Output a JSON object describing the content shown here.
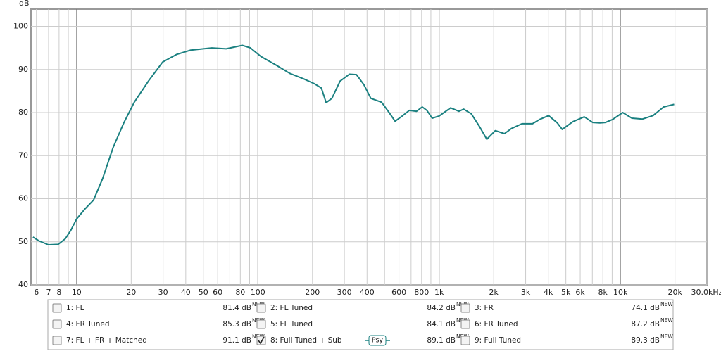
{
  "chart_data": {
    "type": "line",
    "log_x": true,
    "y_label": "dB",
    "xlim": [
      5.6,
      30000
    ],
    "ylim": [
      40,
      104
    ],
    "xticks": [
      6,
      7,
      8,
      10,
      20,
      30,
      40,
      50,
      60,
      80,
      100,
      200,
      300,
      400,
      600,
      800,
      {
        "value": 1000,
        "label": "1k"
      },
      {
        "value": 2000,
        "label": "2k"
      },
      {
        "value": 3000,
        "label": "3k"
      },
      {
        "value": 4000,
        "label": "4k"
      },
      {
        "value": 5000,
        "label": "5k"
      },
      {
        "value": 6000,
        "label": "6k"
      },
      {
        "value": 8000,
        "label": "8k"
      },
      {
        "value": 10000,
        "label": "10k"
      },
      {
        "value": 20000,
        "label": "20k"
      },
      {
        "value": 30000,
        "label": "30.0kHz"
      }
    ],
    "xgrid_minor": [
      9,
      70,
      90,
      500,
      700,
      900,
      7000,
      9000
    ],
    "yticks": [
      40,
      50,
      60,
      70,
      80,
      90,
      100
    ],
    "grid": true,
    "x": [
      5.74,
      6.2,
      6.99,
      7.9,
      8.66,
      9.3,
      10,
      11.1,
      12.4,
      13.9,
      15.9,
      18.2,
      20.8,
      24.9,
      29.8,
      35.7,
      42.6,
      55.7,
      66.8,
      82,
      91,
      104,
      125,
      150,
      179,
      205,
      224,
      238,
      256,
      284,
      320,
      350,
      384,
      420,
      481,
      530,
      571,
      626,
      685,
      750,
      807,
      856,
      915,
      1000,
      1157,
      1285,
      1365,
      1505,
      1672,
      1832,
      2042,
      2290,
      2506,
      2864,
      3272,
      3583,
      4018,
      4485,
      4774,
      5470,
      6318,
      7033,
      7700,
      8270,
      9060,
      10290,
      11570,
      13230,
      15140,
      17320,
      19800
    ],
    "series": [
      {
        "name": "8: Full Tuned + Sub",
        "color": "#1a8080",
        "values": [
          51.1,
          50.2,
          49.3,
          49.4,
          50.7,
          52.7,
          55.3,
          57.6,
          59.7,
          64.6,
          71.9,
          77.6,
          82.4,
          87.3,
          91.7,
          93.5,
          94.5,
          95.0,
          94.8,
          95.6,
          95.0,
          93.0,
          91.1,
          89.1,
          87.8,
          86.7,
          85.7,
          82.3,
          83.3,
          87.3,
          88.9,
          88.8,
          86.5,
          83.3,
          82.4,
          80.0,
          78.0,
          79.2,
          80.5,
          80.3,
          81.3,
          80.5,
          78.7,
          79.2,
          81.1,
          80.3,
          80.8,
          79.7,
          76.7,
          73.8,
          75.8,
          75.1,
          76.3,
          77.4,
          77.4,
          78.4,
          79.3,
          77.6,
          76.1,
          77.9,
          79.0,
          77.7,
          77.6,
          77.7,
          78.4,
          80.0,
          78.7,
          78.5,
          79.3,
          81.3,
          81.9
        ]
      }
    ],
    "legend": [
      {
        "name": "1: FL",
        "reading": "81.4 dB",
        "badge": "NEW",
        "color": "#c02020",
        "checked": false
      },
      {
        "name": "2: FL Tuned",
        "reading": "84.2 dB",
        "badge": "NEW",
        "color": "#a01818",
        "checked": false
      },
      {
        "name": "3: FR",
        "reading": "74.1 dB",
        "badge": "NEW",
        "color": "#2f7a55",
        "checked": false
      },
      {
        "name": "4: FR Tuned",
        "reading": "85.3 dB",
        "badge": "NEW",
        "color": "#1a8080",
        "checked": false
      },
      {
        "name": "5: FL Tuned",
        "reading": "84.1 dB",
        "badge": "NEW",
        "color": "#b01c1c",
        "checked": false
      },
      {
        "name": "6: FR Tuned",
        "reading": "87.2 dB",
        "badge": "NEW",
        "color": "#5a3ea0",
        "checked": false
      },
      {
        "name": "7: FL + FR + Matched",
        "reading": "91.1 dB",
        "badge": "NEW",
        "color": "#2a6a2a",
        "checked": false
      },
      {
        "name": "8: Full Tuned + Sub",
        "reading": "89.1 dB",
        "badge": "NEW",
        "color": "#1a8080",
        "checked": true,
        "psy": "Psy"
      },
      {
        "name": "9: Full Tuned",
        "reading": "89.3 dB",
        "badge": "NEW",
        "color": "#8a20c0",
        "checked": false
      }
    ]
  }
}
